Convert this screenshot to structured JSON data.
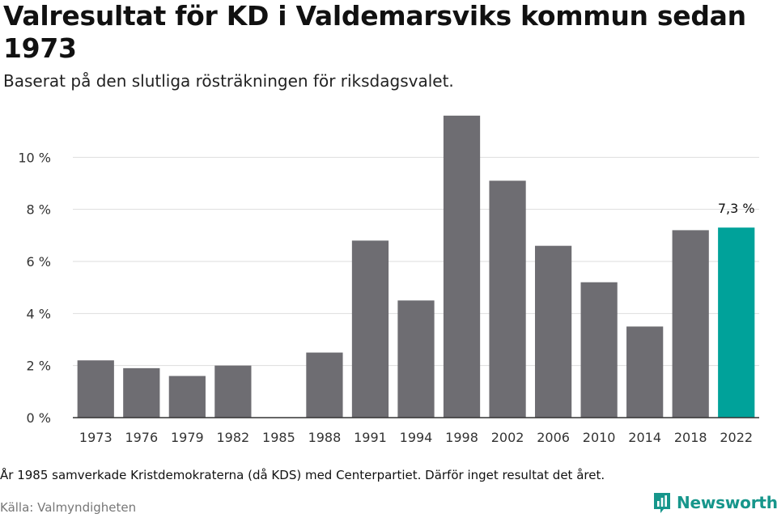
{
  "title": "Valresultat för KD i Valdemarsviks kommun sedan 1973",
  "subtitle": "Baserat på den slutliga rösträkningen för riksdagsvalet.",
  "footnote": "År 1985 samverkade Kristdemokraterna (då KDS) med Centerpartiet. Därför inget resultat det året.",
  "source": "Källa: Valmyndigheten",
  "brand": {
    "name": "Newsworthy",
    "icon": "bar-chart-logo-icon",
    "color": "#16968b"
  },
  "chart_data": {
    "type": "bar",
    "categories": [
      "1973",
      "1976",
      "1979",
      "1982",
      "1985",
      "1988",
      "1991",
      "1994",
      "1998",
      "2002",
      "2006",
      "2010",
      "2014",
      "2018",
      "2022"
    ],
    "values": [
      2.2,
      1.9,
      1.6,
      2.0,
      null,
      2.5,
      6.8,
      4.5,
      11.6,
      9.1,
      6.6,
      5.2,
      3.5,
      7.2,
      7.3
    ],
    "ylim": [
      0,
      12
    ],
    "yticks": [
      0,
      2,
      4,
      6,
      8,
      10
    ],
    "ytick_labels": [
      "0 %",
      "2 %",
      "4 %",
      "6 %",
      "8 %",
      "10 %"
    ],
    "grid": true,
    "bar_color": "#6e6d72",
    "highlight_color": "#00a29a",
    "highlight_index": 14,
    "data_labels": [
      {
        "index": 14,
        "text": "7,3 %"
      }
    ]
  }
}
